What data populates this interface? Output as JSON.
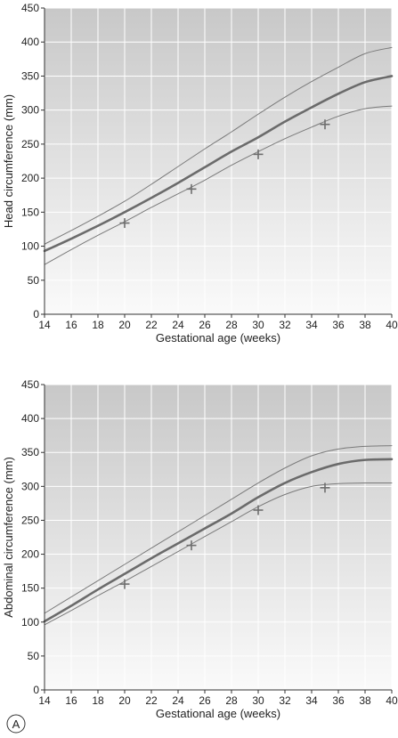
{
  "figure": {
    "panel_label": "A",
    "colors": {
      "plot_background_top": "#c8c8c8",
      "plot_background_bottom": "#fafafa",
      "grid": "#ffffff",
      "median_line": "#6b6b6b",
      "centile_lines": "#7a7a7a",
      "markers": "#6e6e6e",
      "axis": "#333333"
    }
  },
  "chart_data": [
    {
      "type": "line",
      "xlabel": "Gestational age (weeks)",
      "ylabel": "Head circumference (mm)",
      "xlim": [
        14,
        40
      ],
      "ylim": [
        0,
        450
      ],
      "x_ticks": [
        14,
        16,
        18,
        20,
        22,
        24,
        26,
        28,
        30,
        32,
        34,
        36,
        38,
        40
      ],
      "y_ticks": [
        0,
        50,
        100,
        150,
        200,
        250,
        300,
        350,
        400,
        450
      ],
      "grid": true,
      "x": [
        14,
        16,
        18,
        20,
        22,
        24,
        26,
        28,
        30,
        32,
        34,
        36,
        38,
        40
      ],
      "series": [
        {
          "role": "upper",
          "values": [
            103,
            123,
            144,
            166,
            191,
            217,
            243,
            268,
            294,
            319,
            342,
            363,
            383,
            392
          ]
        },
        {
          "role": "median",
          "values": [
            93,
            111,
            130,
            150,
            171,
            193,
            216,
            239,
            260,
            283,
            304,
            324,
            341,
            350
          ]
        },
        {
          "role": "lower",
          "values": [
            73,
            95,
            116,
            136,
            157,
            177,
            197,
            219,
            239,
            258,
            275,
            291,
            302,
            306
          ]
        },
        {
          "role": "observations",
          "points": [
            [
              20,
              134
            ],
            [
              25,
              184
            ],
            [
              30,
              235
            ],
            [
              35,
              279
            ]
          ]
        }
      ]
    },
    {
      "type": "line",
      "xlabel": "Gestational age (weeks)",
      "ylabel": "Abdominal circumference (mm)",
      "xlim": [
        14,
        40
      ],
      "ylim": [
        0,
        450
      ],
      "x_ticks": [
        14,
        16,
        18,
        20,
        22,
        24,
        26,
        28,
        30,
        32,
        34,
        36,
        38,
        40
      ],
      "y_ticks": [
        0,
        50,
        100,
        150,
        200,
        250,
        300,
        350,
        400,
        450
      ],
      "grid": true,
      "x": [
        14,
        16,
        18,
        20,
        22,
        24,
        26,
        28,
        30,
        32,
        34,
        36,
        38,
        40
      ],
      "series": [
        {
          "role": "upper",
          "values": [
            113,
            137,
            161,
            185,
            209,
            233,
            257,
            281,
            305,
            327,
            345,
            355,
            359,
            360
          ]
        },
        {
          "role": "median",
          "values": [
            101,
            124,
            148,
            171,
            194,
            216,
            238,
            260,
            284,
            305,
            321,
            333,
            339,
            340
          ]
        },
        {
          "role": "lower",
          "values": [
            96,
            117,
            139,
            160,
            182,
            204,
            226,
            248,
            270,
            288,
            300,
            304,
            305,
            305
          ]
        },
        {
          "role": "observations",
          "points": [
            [
              20,
              156
            ],
            [
              25,
              213
            ],
            [
              30,
              265
            ],
            [
              35,
              298
            ]
          ]
        }
      ]
    }
  ]
}
